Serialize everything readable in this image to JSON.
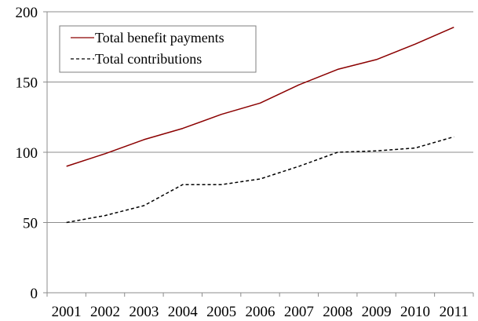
{
  "chart_data": {
    "type": "line",
    "title": "",
    "xlabel": "",
    "ylabel": "",
    "x": [
      "2001",
      "2002",
      "2003",
      "2004",
      "2005",
      "2006",
      "2007",
      "2008",
      "2009",
      "2010",
      "2011"
    ],
    "ylim": [
      0,
      200
    ],
    "yticks": [
      "0",
      "50",
      "100",
      "150",
      "200"
    ],
    "grid": true,
    "legend_position": "top-left",
    "series": [
      {
        "name": "Total benefit payments",
        "values": [
          90,
          99,
          109,
          117,
          127,
          135,
          148,
          159,
          166,
          177,
          189
        ],
        "color": "#8b0000",
        "style": "solid"
      },
      {
        "name": "Total contributions",
        "values": [
          50,
          55,
          62,
          77,
          77,
          81,
          90,
          100,
          101,
          103,
          111
        ],
        "color": "#000000",
        "style": "dashed"
      }
    ]
  }
}
